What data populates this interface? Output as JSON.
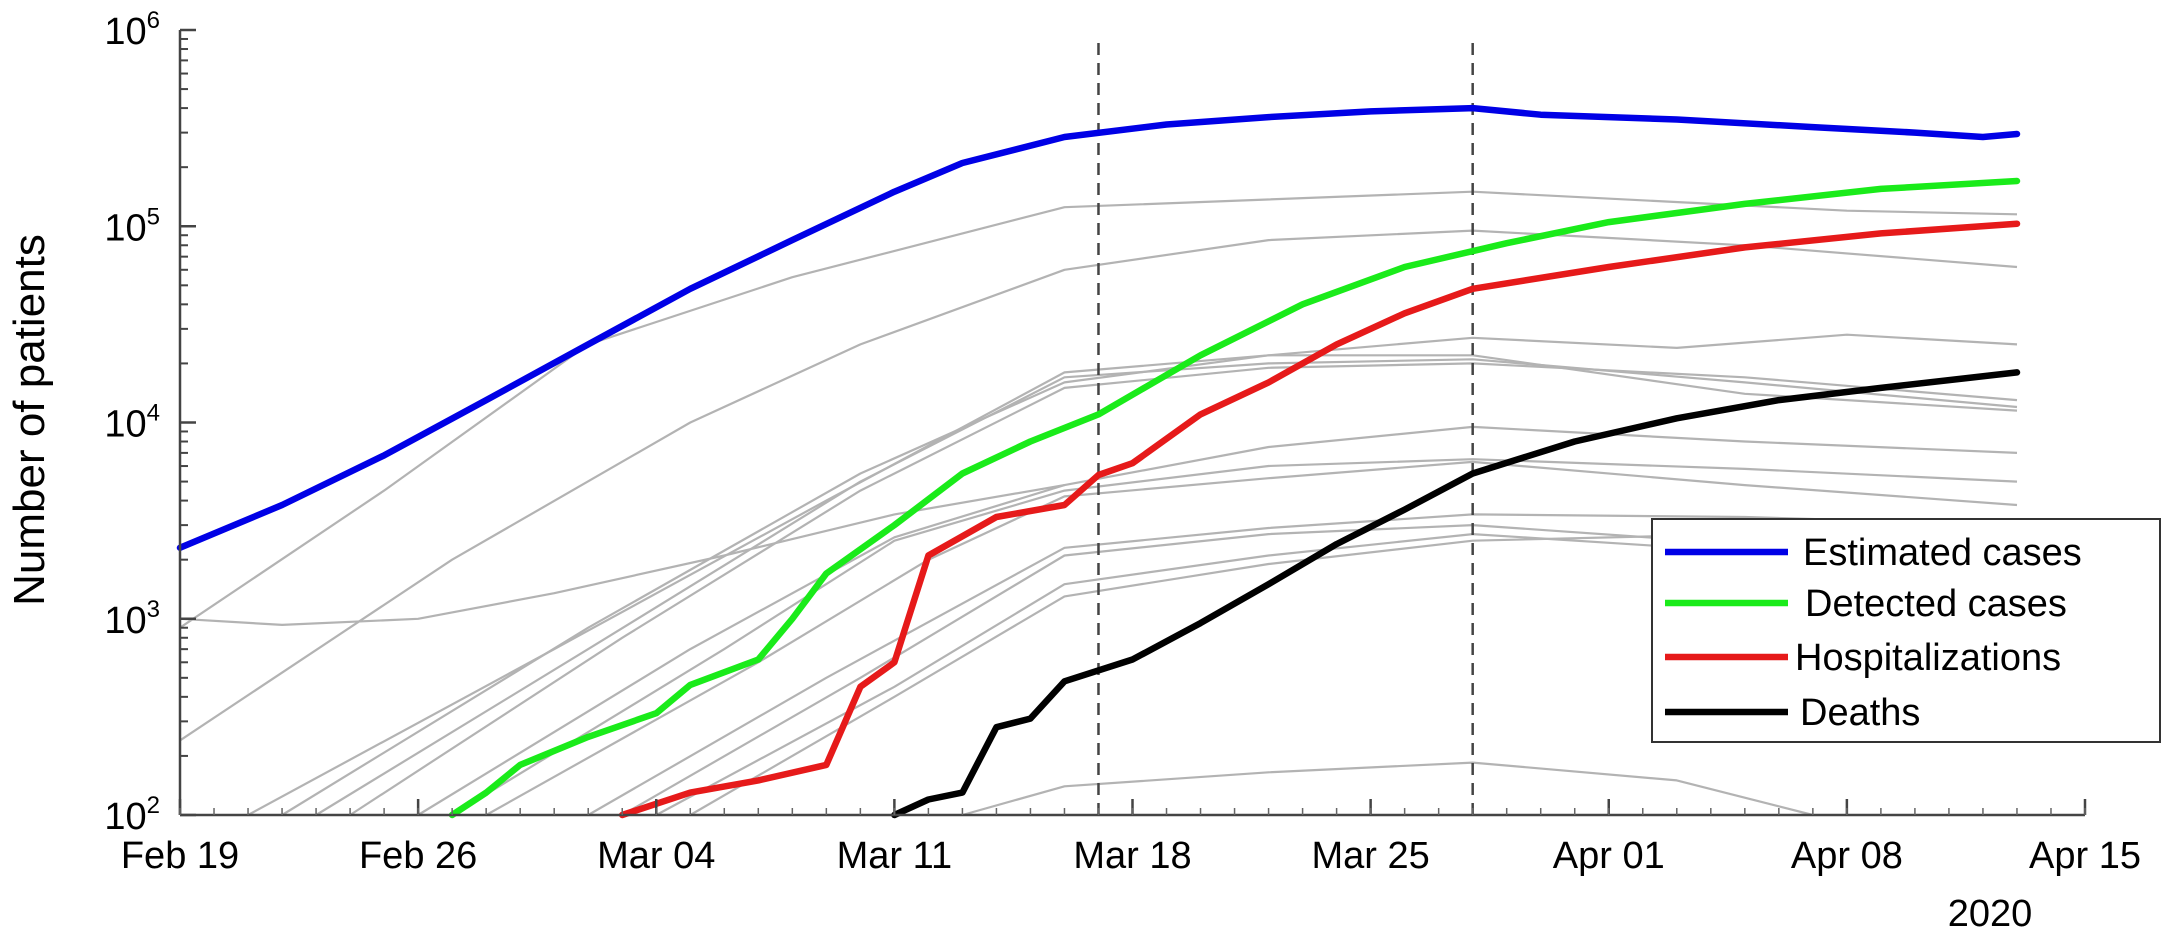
{
  "chart_data": {
    "type": "line",
    "title": "",
    "xlabel": "",
    "ylabel": "Number of patients",
    "year_label": "2020",
    "x_scale": "date",
    "y_scale": "log",
    "xlim": [
      "2020-02-19",
      "2020-04-15"
    ],
    "ylim": [
      100,
      1000000
    ],
    "x_ticks": [
      {
        "date": "2020-02-19",
        "label": "Feb 19"
      },
      {
        "date": "2020-02-26",
        "label": "Feb 26"
      },
      {
        "date": "2020-03-04",
        "label": "Mar 04"
      },
      {
        "date": "2020-03-11",
        "label": "Mar 11"
      },
      {
        "date": "2020-03-18",
        "label": "Mar 18"
      },
      {
        "date": "2020-03-25",
        "label": "Mar 25"
      },
      {
        "date": "2020-04-01",
        "label": "Apr 01"
      },
      {
        "date": "2020-04-08",
        "label": "Apr 08"
      },
      {
        "date": "2020-04-15",
        "label": "Apr 15"
      }
    ],
    "y_ticks": [
      {
        "value": 100,
        "base": "10",
        "exp": "2"
      },
      {
        "value": 1000,
        "base": "10",
        "exp": "3"
      },
      {
        "value": 10000,
        "base": "10",
        "exp": "4"
      },
      {
        "value": 100000,
        "base": "10",
        "exp": "5"
      },
      {
        "value": 1000000,
        "base": "10",
        "exp": "6"
      }
    ],
    "vlines": [
      "2020-03-17",
      "2020-03-28"
    ],
    "legend_position": "right",
    "series": [
      {
        "name": "Estimated cases",
        "color": "#0000e6",
        "points": [
          [
            "2020-02-19",
            2300
          ],
          [
            "2020-02-22",
            3800
          ],
          [
            "2020-02-25",
            6800
          ],
          [
            "2020-02-28",
            13000
          ],
          [
            "2020-03-02",
            25000
          ],
          [
            "2020-03-05",
            48000
          ],
          [
            "2020-03-08",
            85000
          ],
          [
            "2020-03-11",
            150000
          ],
          [
            "2020-03-13",
            210000
          ],
          [
            "2020-03-16",
            285000
          ],
          [
            "2020-03-19",
            330000
          ],
          [
            "2020-03-22",
            360000
          ],
          [
            "2020-03-25",
            385000
          ],
          [
            "2020-03-28",
            400000
          ],
          [
            "2020-03-30",
            370000
          ],
          [
            "2020-04-03",
            350000
          ],
          [
            "2020-04-07",
            320000
          ],
          [
            "2020-04-10",
            300000
          ],
          [
            "2020-04-12",
            285000
          ],
          [
            "2020-04-13",
            295000
          ]
        ]
      },
      {
        "name": "Detected cases",
        "color": "#1aeb1a",
        "points": [
          [
            "2020-02-27",
            100
          ],
          [
            "2020-02-28",
            130
          ],
          [
            "2020-02-29",
            180
          ],
          [
            "2020-03-02",
            250
          ],
          [
            "2020-03-04",
            330
          ],
          [
            "2020-03-05",
            460
          ],
          [
            "2020-03-07",
            620
          ],
          [
            "2020-03-08",
            1000
          ],
          [
            "2020-03-09",
            1700
          ],
          [
            "2020-03-11",
            3000
          ],
          [
            "2020-03-13",
            5500
          ],
          [
            "2020-03-15",
            8000
          ],
          [
            "2020-03-17",
            11000
          ],
          [
            "2020-03-20",
            22000
          ],
          [
            "2020-03-23",
            40000
          ],
          [
            "2020-03-26",
            62000
          ],
          [
            "2020-03-29",
            82000
          ],
          [
            "2020-04-01",
            105000
          ],
          [
            "2020-04-05",
            130000
          ],
          [
            "2020-04-09",
            155000
          ],
          [
            "2020-04-13",
            170000
          ]
        ]
      },
      {
        "name": "Hospitalizations",
        "color": "#e61a1a",
        "points": [
          [
            "2020-03-03",
            100
          ],
          [
            "2020-03-05",
            130
          ],
          [
            "2020-03-07",
            150
          ],
          [
            "2020-03-09",
            180
          ],
          [
            "2020-03-10",
            450
          ],
          [
            "2020-03-11",
            600
          ],
          [
            "2020-03-12",
            2100
          ],
          [
            "2020-03-14",
            3300
          ],
          [
            "2020-03-16",
            3800
          ],
          [
            "2020-03-17",
            5400
          ],
          [
            "2020-03-18",
            6200
          ],
          [
            "2020-03-20",
            11000
          ],
          [
            "2020-03-22",
            16000
          ],
          [
            "2020-03-24",
            25000
          ],
          [
            "2020-03-26",
            36000
          ],
          [
            "2020-03-28",
            48000
          ],
          [
            "2020-04-01",
            62000
          ],
          [
            "2020-04-05",
            78000
          ],
          [
            "2020-04-09",
            92000
          ],
          [
            "2020-04-13",
            103000
          ]
        ]
      },
      {
        "name": "Deaths",
        "color": "#000000",
        "points": [
          [
            "2020-03-11",
            100
          ],
          [
            "2020-03-12",
            120
          ],
          [
            "2020-03-13",
            130
          ],
          [
            "2020-03-14",
            280
          ],
          [
            "2020-03-15",
            310
          ],
          [
            "2020-03-16",
            480
          ],
          [
            "2020-03-18",
            620
          ],
          [
            "2020-03-20",
            950
          ],
          [
            "2020-03-22",
            1500
          ],
          [
            "2020-03-24",
            2400
          ],
          [
            "2020-03-26",
            3600
          ],
          [
            "2020-03-28",
            5500
          ],
          [
            "2020-03-31",
            8000
          ],
          [
            "2020-04-03",
            10500
          ],
          [
            "2020-04-06",
            13000
          ],
          [
            "2020-04-09",
            15000
          ],
          [
            "2020-04-13",
            18000
          ]
        ]
      }
    ],
    "background_series": {
      "color": "#b3b3b3",
      "lines": [
        [
          [
            "2020-02-19",
            1000
          ],
          [
            "2020-02-22",
            930
          ],
          [
            "2020-02-26",
            1000
          ],
          [
            "2020-03-01",
            1350
          ],
          [
            "2020-03-06",
            2100
          ],
          [
            "2020-03-11",
            3400
          ],
          [
            "2020-03-16",
            4800
          ]
        ],
        [
          [
            "2020-02-19",
            900
          ],
          [
            "2020-02-25",
            4500
          ],
          [
            "2020-03-02",
            25000
          ],
          [
            "2020-03-08",
            55000
          ],
          [
            "2020-03-16",
            125000
          ],
          [
            "2020-03-28",
            150000
          ],
          [
            "2020-04-08",
            120000
          ],
          [
            "2020-04-13",
            115000
          ]
        ],
        [
          [
            "2020-02-19",
            240
          ],
          [
            "2020-02-27",
            2000
          ],
          [
            "2020-03-05",
            10000
          ],
          [
            "2020-03-10",
            25000
          ],
          [
            "2020-03-16",
            60000
          ],
          [
            "2020-03-22",
            85000
          ],
          [
            "2020-03-28",
            95000
          ],
          [
            "2020-04-05",
            80000
          ],
          [
            "2020-04-13",
            62000
          ]
        ],
        [
          [
            "2020-02-21",
            100
          ],
          [
            "2020-03-01",
            700
          ],
          [
            "2020-03-09",
            4000
          ],
          [
            "2020-03-16",
            18000
          ],
          [
            "2020-03-22",
            22000
          ],
          [
            "2020-03-28",
            27000
          ],
          [
            "2020-04-03",
            24000
          ],
          [
            "2020-04-08",
            28000
          ],
          [
            "2020-04-13",
            25000
          ]
        ],
        [
          [
            "2020-02-23",
            100
          ],
          [
            "2020-03-02",
            700
          ],
          [
            "2020-03-10",
            5000
          ],
          [
            "2020-03-16",
            17000
          ],
          [
            "2020-03-22",
            20000
          ],
          [
            "2020-03-28",
            21000
          ],
          [
            "2020-04-05",
            16000
          ],
          [
            "2020-04-13",
            12000
          ]
        ],
        [
          [
            "2020-02-24",
            100
          ],
          [
            "2020-03-03",
            800
          ],
          [
            "2020-03-10",
            4500
          ],
          [
            "2020-03-16",
            15000
          ],
          [
            "2020-03-22",
            19000
          ],
          [
            "2020-03-28",
            20000
          ],
          [
            "2020-04-05",
            17000
          ],
          [
            "2020-04-13",
            13000
          ]
        ],
        [
          [
            "2020-02-22",
            100
          ],
          [
            "2020-03-02",
            900
          ],
          [
            "2020-03-10",
            5500
          ],
          [
            "2020-03-16",
            16000
          ],
          [
            "2020-03-22",
            22000
          ],
          [
            "2020-03-28",
            22000
          ],
          [
            "2020-04-05",
            14000
          ],
          [
            "2020-04-13",
            11500
          ]
        ],
        [
          [
            "2020-02-26",
            100
          ],
          [
            "2020-03-05",
            700
          ],
          [
            "2020-03-11",
            2600
          ],
          [
            "2020-03-16",
            4800
          ],
          [
            "2020-03-22",
            7500
          ],
          [
            "2020-03-28",
            9500
          ],
          [
            "2020-04-05",
            8000
          ],
          [
            "2020-04-13",
            7000
          ]
        ],
        [
          [
            "2020-02-27",
            100
          ],
          [
            "2020-03-06",
            700
          ],
          [
            "2020-03-11",
            2500
          ],
          [
            "2020-03-16",
            4500
          ],
          [
            "2020-03-22",
            6000
          ],
          [
            "2020-03-28",
            6500
          ],
          [
            "2020-04-05",
            5800
          ],
          [
            "2020-04-13",
            5000
          ]
        ],
        [
          [
            "2020-02-28",
            100
          ],
          [
            "2020-03-07",
            600
          ],
          [
            "2020-03-12",
            2000
          ],
          [
            "2020-03-16",
            4200
          ],
          [
            "2020-03-22",
            5200
          ],
          [
            "2020-03-28",
            6300
          ],
          [
            "2020-04-05",
            4800
          ],
          [
            "2020-04-13",
            3800
          ]
        ],
        [
          [
            "2020-03-02",
            100
          ],
          [
            "2020-03-09",
            500
          ],
          [
            "2020-03-16",
            2300
          ],
          [
            "2020-03-22",
            2900
          ],
          [
            "2020-03-28",
            3400
          ],
          [
            "2020-04-05",
            3300
          ],
          [
            "2020-04-13",
            3000
          ]
        ],
        [
          [
            "2020-03-03",
            100
          ],
          [
            "2020-03-10",
            500
          ],
          [
            "2020-03-16",
            2100
          ],
          [
            "2020-03-22",
            2700
          ],
          [
            "2020-03-28",
            3000
          ],
          [
            "2020-04-05",
            2400
          ],
          [
            "2020-04-13",
            1900
          ]
        ],
        [
          [
            "2020-03-04",
            100
          ],
          [
            "2020-03-11",
            450
          ],
          [
            "2020-03-16",
            1500
          ],
          [
            "2020-03-22",
            2100
          ],
          [
            "2020-03-28",
            2700
          ],
          [
            "2020-04-05",
            2200
          ],
          [
            "2020-04-13",
            1800
          ]
        ],
        [
          [
            "2020-03-05",
            100
          ],
          [
            "2020-03-11",
            400
          ],
          [
            "2020-03-16",
            1300
          ],
          [
            "2020-03-22",
            1900
          ],
          [
            "2020-03-28",
            2500
          ],
          [
            "2020-04-05",
            2700
          ],
          [
            "2020-04-13",
            2400
          ]
        ],
        [
          [
            "2020-03-13",
            100
          ],
          [
            "2020-03-16",
            140
          ],
          [
            "2020-03-22",
            165
          ],
          [
            "2020-03-28",
            185
          ],
          [
            "2020-04-03",
            150
          ],
          [
            "2020-04-07",
            100
          ]
        ]
      ]
    }
  }
}
